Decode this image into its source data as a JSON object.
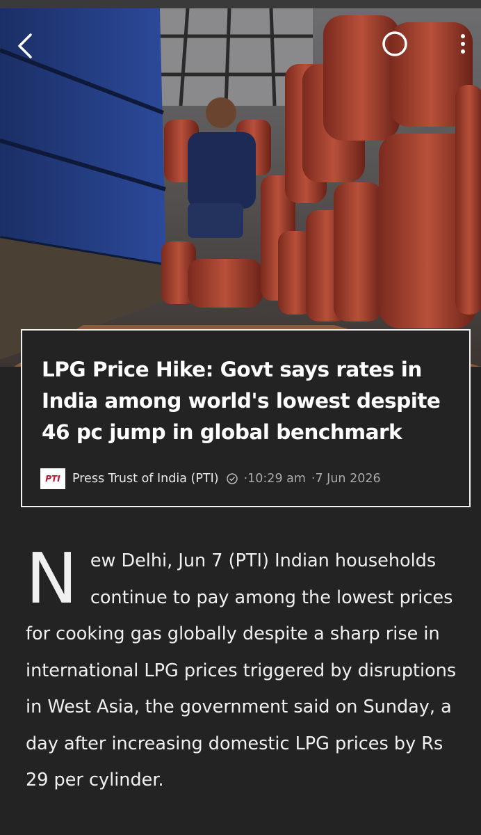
{
  "header": {
    "title": "LPG Price Hike: Govt says rates in India among world's lowest despite 46 pc jump in global benchmark"
  },
  "source": {
    "logo": "PTI",
    "name": "Press Trust of India (PTI)",
    "time": "·10:29 am",
    "date": "·7 Jun 2026"
  },
  "body": {
    "drop_cap": "N",
    "text": "ew Delhi, Jun 7 (PTI) Indian households continue to pay among the lowest prices for cooking gas globally despite a sharp rise in international LPG prices triggered by disruptions in West Asia, the government said on Sunday, a day after increasing domestic LPG prices by Rs 29 per cylinder."
  }
}
